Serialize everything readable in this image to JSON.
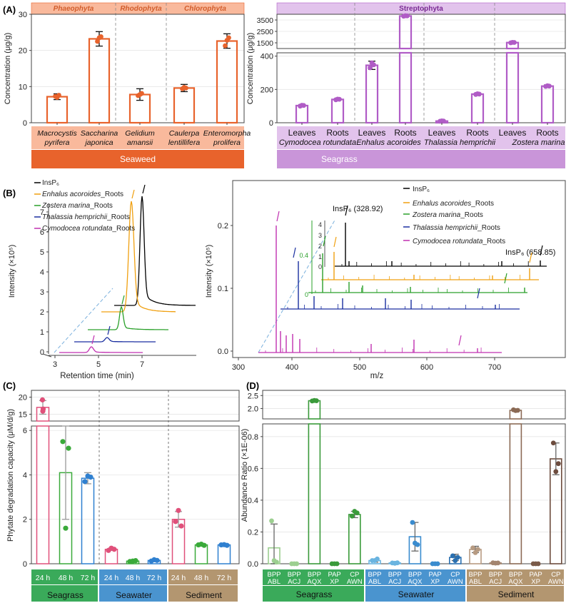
{
  "panel_labels": {
    "A": "(A)",
    "B": "(B)",
    "C": "(C)",
    "D": "(D)"
  },
  "colors": {
    "seaweed_bar": "#e8632c",
    "seaweed_strip": "#f9b99c",
    "seaweed_group": "#f4a584",
    "seagrass_bar": "#b05cc6",
    "seagrass_strip": "#e2c3ec",
    "seagrass_group": "#c995d9",
    "insp6": "#000000",
    "enhalus": "#f0a010",
    "zostera": "#2aa02a",
    "thalassia": "#1a2fa0",
    "cymodocea": "#c030b0",
    "diag": "#7ab0dd",
    "c_24": "#e0507a",
    "c_48": "#3aaa3a",
    "c_72": "#2f80d0",
    "group_seagrass": "#3aaa5a",
    "group_seawater": "#4a94cf",
    "group_sediment": "#b39670"
  },
  "chart_data": [
    {
      "id": "A-left",
      "type": "bar",
      "ylabel": "Concentration (μg/g)",
      "ylim": [
        0,
        30
      ],
      "yticks": [
        0,
        10,
        20,
        30
      ],
      "strips": [
        "Phaeophyta",
        "Rhodophyta",
        "Chlorophyta"
      ],
      "categories": [
        {
          "genus": "Macrocystis",
          "species": "pyrifera"
        },
        {
          "genus": "Saccharina",
          "species": "japonica"
        },
        {
          "genus": "Gelidium",
          "species": "amansii"
        },
        {
          "genus": "Caulerpa",
          "species": "lentillifera"
        },
        {
          "genus": "Enteromorpha",
          "species": "prolifera"
        }
      ],
      "values": [
        7.2,
        23.2,
        7.8,
        9.6,
        22.6
      ],
      "errors": [
        0.8,
        2.0,
        1.6,
        1.0,
        2.0
      ],
      "points": [
        [
          7.3,
          7.0,
          7.6
        ],
        [
          22.5,
          23.5,
          23.8
        ],
        [
          7.5,
          7.8,
          8.1
        ],
        [
          9.4,
          9.8,
          9.6
        ],
        [
          21.3,
          22.8,
          23.5
        ]
      ],
      "group_label": "Seaweed"
    },
    {
      "id": "A-right",
      "type": "bar",
      "broken_axis": true,
      "strip": "Streptophyta",
      "ylabel": "Concentration (μg/g)",
      "ylim_lower": [
        0,
        420
      ],
      "yticks_lower": [
        0,
        200,
        400
      ],
      "ylim_upper": [
        1000,
        4000
      ],
      "yticks_upper": [
        1500,
        2500,
        3500
      ],
      "categories": [
        "Leaves",
        "Roots",
        "Leaves",
        "Roots",
        "Leaves",
        "Roots",
        "Leaves",
        "Roots"
      ],
      "species": [
        "Cymodocea rotundata",
        "Enhalus acoroides",
        "Thalassia hemprichii",
        "Zostera marina"
      ],
      "values": [
        103,
        140,
        345,
        3850,
        10,
        172,
        1520,
        220
      ],
      "errors": [
        6,
        5,
        25,
        30,
        2,
        5,
        30,
        7
      ],
      "points": [
        [
          100,
          105,
          104
        ],
        [
          138,
          142,
          141
        ],
        [
          330,
          360,
          348
        ],
        [
          3830,
          3870,
          3860
        ],
        [
          9,
          11,
          10
        ],
        [
          170,
          174,
          172
        ],
        [
          1500,
          1540,
          1530
        ],
        [
          218,
          222,
          220
        ]
      ],
      "group_label": "Seagrass"
    },
    {
      "id": "B-left",
      "type": "line",
      "xlabel": "Retention time (min)",
      "ylabel": "Intensity (×10⁵)",
      "xticks": [
        3,
        5,
        7
      ],
      "yticks": [
        0,
        1,
        2,
        3,
        4,
        5,
        6,
        7
      ],
      "ylim": [
        0,
        7.8
      ],
      "series": [
        {
          "name": "InsP₆",
          "peak_x": 7.0,
          "peak_y": 5.6,
          "base": 2.3
        },
        {
          "name": "Enhalus acoroides",
          "suffix": "_Roots",
          "peak_x": 6.65,
          "peak_y": 6.55,
          "base": 1.75
        },
        {
          "name": "Zostera marina",
          "suffix": "_Roots",
          "peak_x": 6.35,
          "peak_y": 1.4,
          "base": 1.17
        },
        {
          "name": "Thalassia hemprichii",
          "suffix": "_Roots",
          "peak_x": 5.95,
          "peak_y": 0.58,
          "base": 0.58
        },
        {
          "name": "Cymodocea rotundata",
          "suffix": "_Roots",
          "peak_x": 5.0,
          "peak_y": 0.25,
          "base": 0.02
        }
      ]
    },
    {
      "id": "B-right",
      "type": "line",
      "xlabel": "m/z",
      "ylabel": "Intensity (×10⁵)",
      "xticks": [
        300,
        400,
        500,
        600,
        700
      ],
      "yticks": [
        0.0,
        0.1,
        0.2
      ],
      "ylim": [
        0,
        0.23
      ],
      "annotations": [
        "InsP₆ (328.92)",
        "InsP₆ (658.85)"
      ],
      "inset_yticks": [
        0,
        0.4,
        0,
        1,
        2,
        3,
        4
      ],
      "series": [
        {
          "name": "InsP₆"
        },
        {
          "name": "Enhalus acoroides",
          "suffix": "_Roots"
        },
        {
          "name": "Zostera marina",
          "suffix": "_Roots"
        },
        {
          "name": "Thalassia hemprichii",
          "suffix": "_Roots"
        },
        {
          "name": "Cymodocea rotundata",
          "suffix": "_Roots"
        }
      ]
    },
    {
      "id": "C",
      "type": "bar",
      "broken_axis": true,
      "ylabel": "Phytate degradation capacity (μM/d/g)",
      "ylim_lower": [
        0,
        6.2
      ],
      "yticks_lower": [
        0,
        2,
        4,
        6
      ],
      "ylim_upper": [
        13,
        22
      ],
      "yticks_upper": [
        15,
        20
      ],
      "categories": [
        "24 h",
        "48 h",
        "72 h",
        "24 h",
        "48 h",
        "72 h",
        "24 h",
        "48 h",
        "72 h"
      ],
      "groups": [
        "Seagrass",
        "Seawater",
        "Sediment"
      ],
      "values": [
        17.0,
        4.1,
        3.85,
        0.65,
        0.12,
        0.15,
        2.0,
        0.85,
        0.85
      ],
      "errors": [
        2.0,
        2.1,
        0.25,
        0.05,
        0.03,
        0.05,
        0.35,
        0.04,
        0.03
      ],
      "points": [
        [
          19.2,
          15.9,
          16.5
        ],
        [
          5.5,
          1.6,
          5.2
        ],
        [
          3.7,
          3.95,
          3.9
        ],
        [
          0.6,
          0.7,
          0.65
        ],
        [
          0.1,
          0.12,
          0.14
        ],
        [
          0.12,
          0.18,
          0.15
        ],
        [
          1.9,
          2.4,
          1.7
        ],
        [
          0.85,
          0.88,
          0.83
        ],
        [
          0.85,
          0.86,
          0.83
        ]
      ]
    },
    {
      "id": "D",
      "type": "bar",
      "broken_axis": true,
      "ylabel": "Abundance Ratio (×1E-06)",
      "ylim_lower": [
        0,
        0.88
      ],
      "yticks_lower": [
        0.0,
        0.2,
        0.4,
        0.6,
        0.8
      ],
      "ylim_upper": [
        1.6,
        2.7
      ],
      "yticks_upper": [
        2.0,
        2.5
      ],
      "categories": [
        [
          "BPP",
          "ABL"
        ],
        [
          "BPP",
          "ACJ"
        ],
        [
          "BPP",
          "AQX"
        ],
        [
          "PAP",
          "XP"
        ],
        [
          "CP",
          "AWN"
        ],
        [
          "BPP",
          "ABL"
        ],
        [
          "BPP",
          "ACJ"
        ],
        [
          "BPP",
          "AQX"
        ],
        [
          "PAP",
          "XP"
        ],
        [
          "CP",
          "AWN"
        ],
        [
          "BPP",
          "ABL"
        ],
        [
          "BPP",
          "ACJ"
        ],
        [
          "BPP",
          "AQX"
        ],
        [
          "PAP",
          "XP"
        ],
        [
          "CP",
          "AWN"
        ]
      ],
      "groups": [
        "Seagrass",
        "Seawater",
        "Sediment"
      ],
      "values": [
        0.1,
        0.0,
        2.3,
        0.0,
        0.31,
        0.02,
        0.005,
        0.17,
        0.0,
        0.04,
        0.09,
        0.005,
        1.93,
        0.0,
        0.66
      ],
      "errors": [
        0.15,
        0.0,
        0.02,
        0.0,
        0.02,
        0.01,
        0.003,
        0.09,
        0.0,
        0.02,
        0.02,
        0.003,
        0.03,
        0.0,
        0.1
      ],
      "points": [
        [
          0.27,
          0.02,
          0.01
        ],
        [
          0.0,
          0.0,
          0.0
        ],
        [
          2.29,
          2.31,
          2.3
        ],
        [
          0.0,
          0.0,
          0.0
        ],
        [
          0.3,
          0.33,
          0.32
        ],
        [
          0.02,
          0.02,
          0.03
        ],
        [
          0.005,
          0.003,
          0.006
        ],
        [
          0.26,
          0.13,
          0.12
        ],
        [
          0.0,
          0.0,
          0.0
        ],
        [
          0.05,
          0.02,
          0.04
        ],
        [
          0.1,
          0.07,
          0.09
        ],
        [
          0.006,
          0.004,
          0.005
        ],
        [
          1.95,
          1.92,
          1.93
        ],
        [
          0.0,
          0.0,
          0.0
        ],
        [
          0.76,
          0.58,
          0.63
        ]
      ]
    }
  ]
}
